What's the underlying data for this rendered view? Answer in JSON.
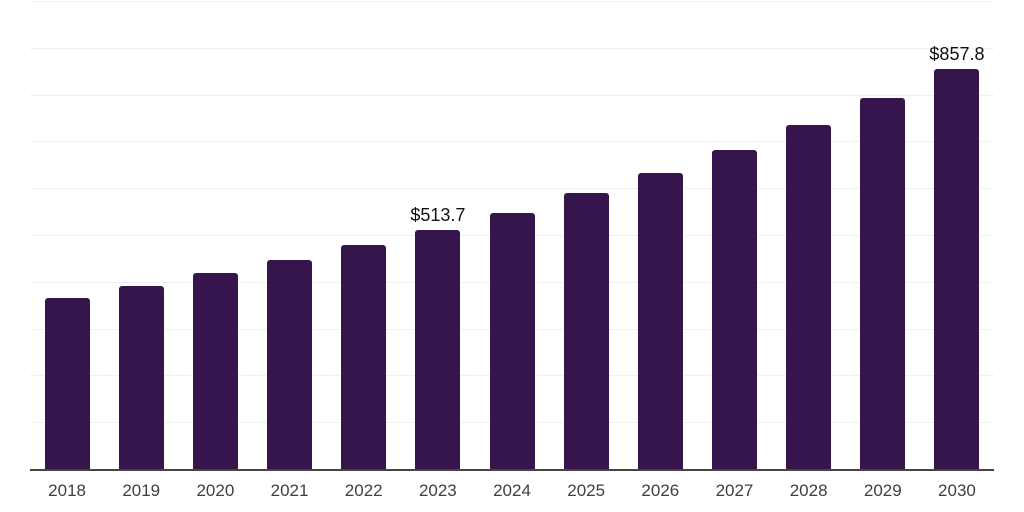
{
  "chart_data": {
    "type": "bar",
    "title": "",
    "xlabel": "",
    "ylabel": "",
    "categories": [
      "2018",
      "2019",
      "2020",
      "2021",
      "2022",
      "2023",
      "2024",
      "2025",
      "2026",
      "2027",
      "2028",
      "2029",
      "2030"
    ],
    "values": [
      368,
      394,
      421,
      448,
      481,
      513.7,
      550,
      592,
      635,
      684,
      738,
      795,
      857.8
    ],
    "point_labels": [
      "",
      "",
      "",
      "",
      "",
      "$513.7",
      "",
      "",
      "",
      "",
      "",
      "",
      "$857.8"
    ],
    "ylim": [
      0,
      1000
    ],
    "gridline_step": 100,
    "grid": "horizontal-only",
    "y_axis_tick_labels_visible": false,
    "legend": "none"
  },
  "colors": {
    "background": "#ffffff",
    "bar": "#36154d",
    "gridline": "#f0f0f2",
    "axis_line": "#454545",
    "x_tick_label": "#3f3f3f",
    "data_label": "#111111"
  }
}
